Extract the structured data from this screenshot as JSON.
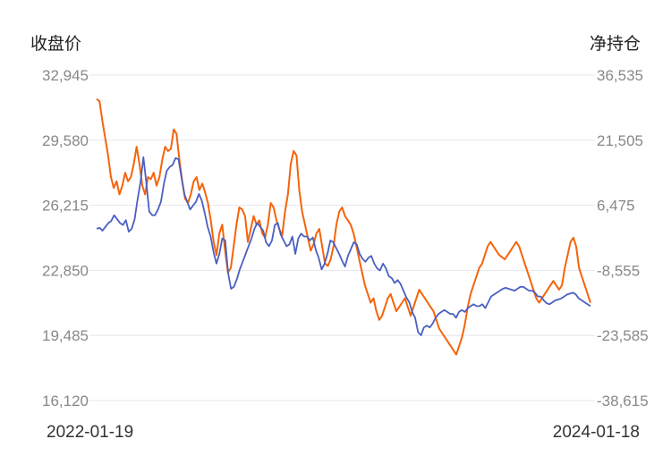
{
  "chart_data": {
    "type": "line",
    "left_axis_title": "收盘价",
    "right_axis_title": "净持仓",
    "left_ticks": [
      "32,945",
      "29,580",
      "26,215",
      "22,850",
      "19,485",
      "16,120"
    ],
    "right_ticks": [
      "36,535",
      "21,505",
      "6,475",
      "-8,555",
      "-23,585",
      "-38,615"
    ],
    "ylim_left": [
      16120,
      32945
    ],
    "ylim_right": [
      -38615,
      36535
    ],
    "x_start_label": "2022-01-19",
    "x_end_label": "2024-01-18",
    "grid": true,
    "colors": {
      "close": "#4a5fc1",
      "net_position": "#f5640a",
      "grid": "#e6e6ef"
    },
    "series": [
      {
        "key": "close",
        "axis": "left",
        "values": [
          25000,
          25050,
          24900,
          25100,
          25300,
          25400,
          25700,
          25500,
          25300,
          25200,
          25450,
          24850,
          25000,
          25500,
          26500,
          27400,
          28700,
          27400,
          25900,
          25700,
          25700,
          26000,
          26400,
          27300,
          28000,
          28200,
          28300,
          28650,
          28600,
          27700,
          26800,
          26400,
          26000,
          26200,
          26400,
          26800,
          26450,
          25800,
          25100,
          24600,
          23800,
          23200,
          23700,
          24500,
          24400,
          22700,
          21900,
          22000,
          22400,
          22900,
          23300,
          23700,
          24100,
          24500,
          25000,
          25300,
          25100,
          24900,
          24300,
          24100,
          24400,
          25200,
          25300,
          24700,
          24400,
          24100,
          24200,
          24600,
          23700,
          24500,
          24750,
          24600,
          24600,
          24400,
          24550,
          23900,
          23500,
          22900,
          23200,
          23700,
          24400,
          24300,
          24000,
          23700,
          23350,
          23050,
          23600,
          23950,
          24300,
          24200,
          23700,
          23450,
          23300,
          23500,
          23600,
          23200,
          22950,
          22850,
          23200,
          22950,
          22550,
          22450,
          22200,
          22350,
          22150,
          21800,
          21450,
          21200,
          20700,
          20400,
          19650,
          19500,
          19900,
          20000,
          19900,
          20100,
          20400,
          20600,
          20700,
          20800,
          20700,
          20600,
          20600,
          20400,
          20700,
          20800,
          20700,
          20900,
          21000,
          21100,
          21000,
          21000,
          21100,
          20900,
          21200,
          21500,
          21600,
          21700,
          21800,
          21900,
          21950,
          21900,
          21850,
          21800,
          21900,
          22000,
          22000,
          21900,
          21800,
          21800,
          21700,
          21500,
          21500,
          21300,
          21150,
          21100,
          21200,
          21300,
          21350,
          21400,
          21500,
          21600,
          21650,
          21700,
          21600,
          21400,
          21300,
          21200,
          21100,
          21000
        ]
      },
      {
        "key": "net_position",
        "axis": "right",
        "values": [
          31000,
          30500,
          26000,
          22000,
          18000,
          13000,
          10500,
          12000,
          9000,
          11000,
          14000,
          12000,
          13000,
          16000,
          20000,
          16000,
          11000,
          9000,
          13000,
          12500,
          14000,
          11000,
          13000,
          17000,
          20000,
          19000,
          19500,
          24000,
          23000,
          17000,
          12000,
          8000,
          7000,
          9000,
          12000,
          13000,
          10000,
          11500,
          9500,
          7000,
          3000,
          -2000,
          -5000,
          0,
          2000,
          -4000,
          -9000,
          -8000,
          -3000,
          2000,
          6000,
          5500,
          4000,
          -2000,
          1000,
          4000,
          2000,
          3000,
          0,
          -1000,
          2000,
          7000,
          6000,
          3000,
          1000,
          -500,
          5000,
          9000,
          16000,
          19000,
          18000,
          10000,
          5000,
          2000,
          -1000,
          -4000,
          -2500,
          0,
          1000,
          -3000,
          -7000,
          -7500,
          -6000,
          -3000,
          2000,
          5000,
          6000,
          4000,
          3000,
          2000,
          0,
          -3000,
          -6000,
          -9000,
          -12000,
          -14000,
          -16000,
          -15000,
          -18000,
          -20000,
          -19000,
          -17000,
          -15000,
          -14000,
          -16000,
          -18000,
          -17000,
          -16000,
          -15000,
          -17000,
          -19000,
          -17000,
          -15000,
          -13000,
          -14000,
          -15000,
          -16000,
          -17000,
          -18000,
          -20000,
          -22000,
          -23000,
          -24000,
          -25000,
          -26000,
          -27000,
          -28000,
          -26000,
          -24000,
          -21000,
          -17000,
          -14000,
          -12000,
          -10000,
          -8000,
          -7000,
          -5000,
          -3000,
          -2000,
          -3000,
          -4000,
          -5000,
          -5500,
          -6000,
          -5000,
          -4000,
          -3000,
          -2000,
          -3000,
          -5000,
          -7000,
          -9000,
          -11000,
          -13000,
          -15000,
          -16000,
          -15000,
          -14000,
          -13000,
          -12000,
          -11000,
          -12000,
          -13000,
          -12000,
          -8000,
          -5000,
          -2000,
          -1000,
          -3000,
          -8000,
          -10000,
          -12000,
          -14000,
          -16000
        ]
      }
    ]
  }
}
